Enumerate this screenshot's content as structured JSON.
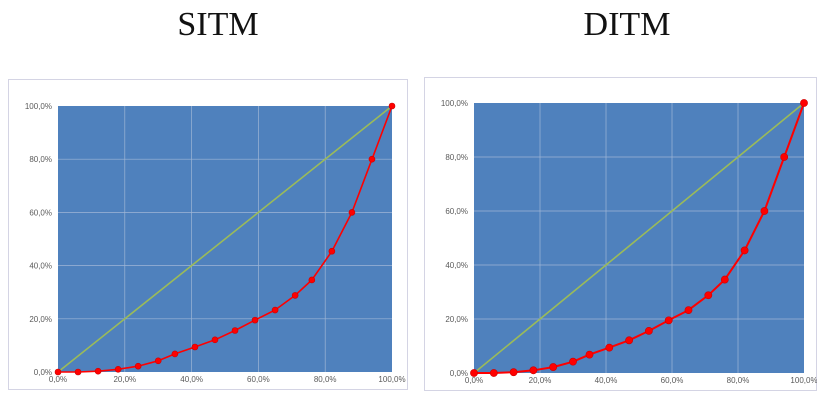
{
  "headings": [
    "SITM",
    "DITM"
  ],
  "colors": {
    "plot_area": "#4f81bd",
    "gridline": "#9fb6d6",
    "equality_line": "#9bbb59",
    "curve": "#ff0000",
    "marker": "#cc0000"
  },
  "chart_data": [
    {
      "type": "line",
      "title": "SITM",
      "xlabel": "",
      "ylabel": "",
      "xlim": [
        0,
        100
      ],
      "ylim": [
        0,
        100
      ],
      "x_tick_labels": [
        "0,0%",
        "20,0%",
        "40,0%",
        "60,0%",
        "80,0%",
        "100,0%"
      ],
      "y_tick_labels": [
        "0,0%",
        "20,0%",
        "40,0%",
        "60,0%",
        "80,0%",
        "100,0%"
      ],
      "grid": true,
      "legend": "none",
      "series": [
        {
          "kind": "equality",
          "x": [
            0,
            100
          ],
          "y": [
            0,
            100
          ]
        },
        {
          "kind": "curve",
          "x": [
            0,
            6,
            12,
            18,
            24,
            30,
            35,
            41,
            47,
            53,
            59,
            65,
            71,
            76,
            82,
            88,
            94,
            100
          ],
          "y": [
            0,
            0,
            0.3,
            1,
            2.2,
            4.2,
            6.8,
            9.4,
            12.1,
            15.6,
            19.5,
            23.3,
            28.8,
            34.6,
            45.4,
            60,
            80,
            100
          ]
        }
      ]
    },
    {
      "type": "line",
      "title": "DITM",
      "xlabel": "",
      "ylabel": "",
      "xlim": [
        0,
        100
      ],
      "ylim": [
        0,
        100
      ],
      "x_tick_labels": [
        "0,0%",
        "20,0%",
        "40,0%",
        "60,0%",
        "80,0%",
        "100,0%"
      ],
      "y_tick_labels": [
        "0,0%",
        "20,0%",
        "40,0%",
        "60,0%",
        "80,0%",
        "100,0%"
      ],
      "grid": true,
      "legend": "none",
      "series": [
        {
          "kind": "equality",
          "x": [
            0,
            100
          ],
          "y": [
            0,
            100
          ]
        },
        {
          "kind": "curve",
          "x": [
            0,
            6,
            12,
            18,
            24,
            30,
            35,
            41,
            47,
            53,
            59,
            65,
            71,
            76,
            82,
            88,
            94,
            100
          ],
          "y": [
            0,
            0,
            0.3,
            1,
            2.2,
            4.2,
            6.8,
            9.4,
            12.1,
            15.6,
            19.5,
            23.3,
            28.8,
            34.6,
            45.4,
            60,
            80,
            100
          ]
        }
      ]
    }
  ]
}
